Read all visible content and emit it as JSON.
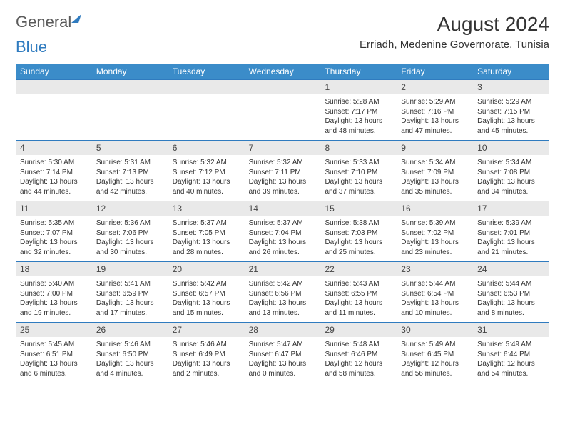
{
  "logo": {
    "part1": "General",
    "part2": "Blue"
  },
  "month_title": "August 2024",
  "location": "Erriadh, Medenine Governorate, Tunisia",
  "colors": {
    "header_blue": "#3b8cc9",
    "rule_blue": "#2f7bbf",
    "daynum_bg": "#e9e9e9",
    "text": "#333333",
    "logo_gray": "#5a5a5a",
    "white": "#ffffff"
  },
  "dow": [
    "Sunday",
    "Monday",
    "Tuesday",
    "Wednesday",
    "Thursday",
    "Friday",
    "Saturday"
  ],
  "weeks": [
    [
      null,
      null,
      null,
      null,
      {
        "n": "1",
        "sr": "5:28 AM",
        "ss": "7:17 PM",
        "dl": "13 hours and 48 minutes."
      },
      {
        "n": "2",
        "sr": "5:29 AM",
        "ss": "7:16 PM",
        "dl": "13 hours and 47 minutes."
      },
      {
        "n": "3",
        "sr": "5:29 AM",
        "ss": "7:15 PM",
        "dl": "13 hours and 45 minutes."
      }
    ],
    [
      {
        "n": "4",
        "sr": "5:30 AM",
        "ss": "7:14 PM",
        "dl": "13 hours and 44 minutes."
      },
      {
        "n": "5",
        "sr": "5:31 AM",
        "ss": "7:13 PM",
        "dl": "13 hours and 42 minutes."
      },
      {
        "n": "6",
        "sr": "5:32 AM",
        "ss": "7:12 PM",
        "dl": "13 hours and 40 minutes."
      },
      {
        "n": "7",
        "sr": "5:32 AM",
        "ss": "7:11 PM",
        "dl": "13 hours and 39 minutes."
      },
      {
        "n": "8",
        "sr": "5:33 AM",
        "ss": "7:10 PM",
        "dl": "13 hours and 37 minutes."
      },
      {
        "n": "9",
        "sr": "5:34 AM",
        "ss": "7:09 PM",
        "dl": "13 hours and 35 minutes."
      },
      {
        "n": "10",
        "sr": "5:34 AM",
        "ss": "7:08 PM",
        "dl": "13 hours and 34 minutes."
      }
    ],
    [
      {
        "n": "11",
        "sr": "5:35 AM",
        "ss": "7:07 PM",
        "dl": "13 hours and 32 minutes."
      },
      {
        "n": "12",
        "sr": "5:36 AM",
        "ss": "7:06 PM",
        "dl": "13 hours and 30 minutes."
      },
      {
        "n": "13",
        "sr": "5:37 AM",
        "ss": "7:05 PM",
        "dl": "13 hours and 28 minutes."
      },
      {
        "n": "14",
        "sr": "5:37 AM",
        "ss": "7:04 PM",
        "dl": "13 hours and 26 minutes."
      },
      {
        "n": "15",
        "sr": "5:38 AM",
        "ss": "7:03 PM",
        "dl": "13 hours and 25 minutes."
      },
      {
        "n": "16",
        "sr": "5:39 AM",
        "ss": "7:02 PM",
        "dl": "13 hours and 23 minutes."
      },
      {
        "n": "17",
        "sr": "5:39 AM",
        "ss": "7:01 PM",
        "dl": "13 hours and 21 minutes."
      }
    ],
    [
      {
        "n": "18",
        "sr": "5:40 AM",
        "ss": "7:00 PM",
        "dl": "13 hours and 19 minutes."
      },
      {
        "n": "19",
        "sr": "5:41 AM",
        "ss": "6:59 PM",
        "dl": "13 hours and 17 minutes."
      },
      {
        "n": "20",
        "sr": "5:42 AM",
        "ss": "6:57 PM",
        "dl": "13 hours and 15 minutes."
      },
      {
        "n": "21",
        "sr": "5:42 AM",
        "ss": "6:56 PM",
        "dl": "13 hours and 13 minutes."
      },
      {
        "n": "22",
        "sr": "5:43 AM",
        "ss": "6:55 PM",
        "dl": "13 hours and 11 minutes."
      },
      {
        "n": "23",
        "sr": "5:44 AM",
        "ss": "6:54 PM",
        "dl": "13 hours and 10 minutes."
      },
      {
        "n": "24",
        "sr": "5:44 AM",
        "ss": "6:53 PM",
        "dl": "13 hours and 8 minutes."
      }
    ],
    [
      {
        "n": "25",
        "sr": "5:45 AM",
        "ss": "6:51 PM",
        "dl": "13 hours and 6 minutes."
      },
      {
        "n": "26",
        "sr": "5:46 AM",
        "ss": "6:50 PM",
        "dl": "13 hours and 4 minutes."
      },
      {
        "n": "27",
        "sr": "5:46 AM",
        "ss": "6:49 PM",
        "dl": "13 hours and 2 minutes."
      },
      {
        "n": "28",
        "sr": "5:47 AM",
        "ss": "6:47 PM",
        "dl": "13 hours and 0 minutes."
      },
      {
        "n": "29",
        "sr": "5:48 AM",
        "ss": "6:46 PM",
        "dl": "12 hours and 58 minutes."
      },
      {
        "n": "30",
        "sr": "5:49 AM",
        "ss": "6:45 PM",
        "dl": "12 hours and 56 minutes."
      },
      {
        "n": "31",
        "sr": "5:49 AM",
        "ss": "6:44 PM",
        "dl": "12 hours and 54 minutes."
      }
    ]
  ],
  "labels": {
    "sunrise": "Sunrise: ",
    "sunset": "Sunset: ",
    "daylight": "Daylight: "
  }
}
